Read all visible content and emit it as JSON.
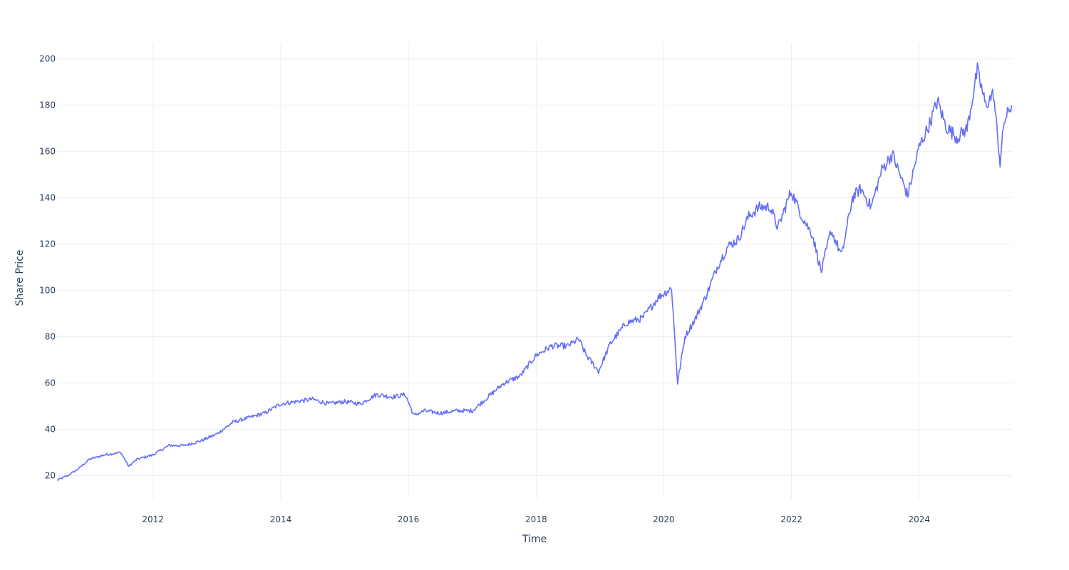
{
  "chart_data": {
    "type": "line",
    "title": "",
    "xlabel": "Time",
    "ylabel": "Share Price",
    "xlim": [
      "2010-07-01",
      "2025-06-15"
    ],
    "ylim": [
      10,
      207
    ],
    "x_ticks": [
      "2012-01-01",
      "2014-01-01",
      "2016-01-01",
      "2018-01-01",
      "2020-01-01",
      "2022-01-01",
      "2024-01-01"
    ],
    "x_tick_labels": [
      "2012",
      "2014",
      "2016",
      "2018",
      "2020",
      "2022",
      "2024"
    ],
    "y_ticks": [
      20,
      40,
      60,
      80,
      100,
      120,
      140,
      160,
      180,
      200
    ],
    "y_tick_labels": [
      "20",
      "40",
      "60",
      "80",
      "100",
      "120",
      "140",
      "160",
      "180",
      "200"
    ],
    "grid": true,
    "legend": "none",
    "series": [
      {
        "color": "#636efa",
        "x": [
          "2010-07-01",
          "2010-09-01",
          "2010-11-01",
          "2011-01-01",
          "2011-04-01",
          "2011-07-01",
          "2011-08-15",
          "2011-10-01",
          "2012-01-01",
          "2012-04-01",
          "2012-07-01",
          "2012-10-01",
          "2013-01-01",
          "2013-04-01",
          "2013-07-01",
          "2013-10-01",
          "2014-01-01",
          "2014-04-01",
          "2014-07-01",
          "2014-10-01",
          "2015-01-01",
          "2015-04-01",
          "2015-07-01",
          "2015-10-01",
          "2015-12-15",
          "2016-02-01",
          "2016-04-01",
          "2016-07-01",
          "2016-10-01",
          "2017-01-01",
          "2017-04-01",
          "2017-07-01",
          "2017-10-01",
          "2018-01-01",
          "2018-04-01",
          "2018-07-01",
          "2018-09-01",
          "2018-10-15",
          "2018-12-24",
          "2019-03-01",
          "2019-06-01",
          "2019-09-01",
          "2019-12-01",
          "2020-02-15",
          "2020-03-20",
          "2020-05-01",
          "2020-07-01",
          "2020-09-01",
          "2020-11-01",
          "2021-01-01",
          "2021-03-01",
          "2021-05-01",
          "2021-07-01",
          "2021-09-01",
          "2021-10-15",
          "2021-12-30",
          "2022-03-01",
          "2022-05-01",
          "2022-06-20",
          "2022-08-15",
          "2022-10-15",
          "2022-12-15",
          "2023-02-01",
          "2023-04-01",
          "2023-06-01",
          "2023-07-31",
          "2023-10-27",
          "2024-01-01",
          "2024-03-01",
          "2024-04-15",
          "2024-06-01",
          "2024-08-05",
          "2024-10-01",
          "2024-11-29",
          "2025-01-15",
          "2025-03-01",
          "2025-04-08",
          "2025-05-01",
          "2025-06-13"
        ],
        "y": [
          18,
          20,
          23,
          27,
          29,
          30,
          24,
          27,
          29,
          33,
          33,
          35,
          38,
          43,
          45,
          47,
          51,
          52,
          53,
          51,
          52,
          51,
          55,
          54,
          55,
          46,
          48,
          47,
          48,
          48,
          54,
          60,
          63,
          72,
          76,
          76,
          79,
          72,
          65,
          77,
          86,
          88,
          97,
          101,
          60,
          80,
          88,
          98,
          110,
          119,
          122,
          132,
          136,
          136,
          127,
          143,
          132,
          124,
          108,
          126,
          115,
          140,
          144,
          136,
          152,
          159,
          141,
          162,
          172,
          182,
          171,
          166,
          170,
          195,
          180,
          185,
          155,
          173,
          180
        ]
      }
    ]
  }
}
